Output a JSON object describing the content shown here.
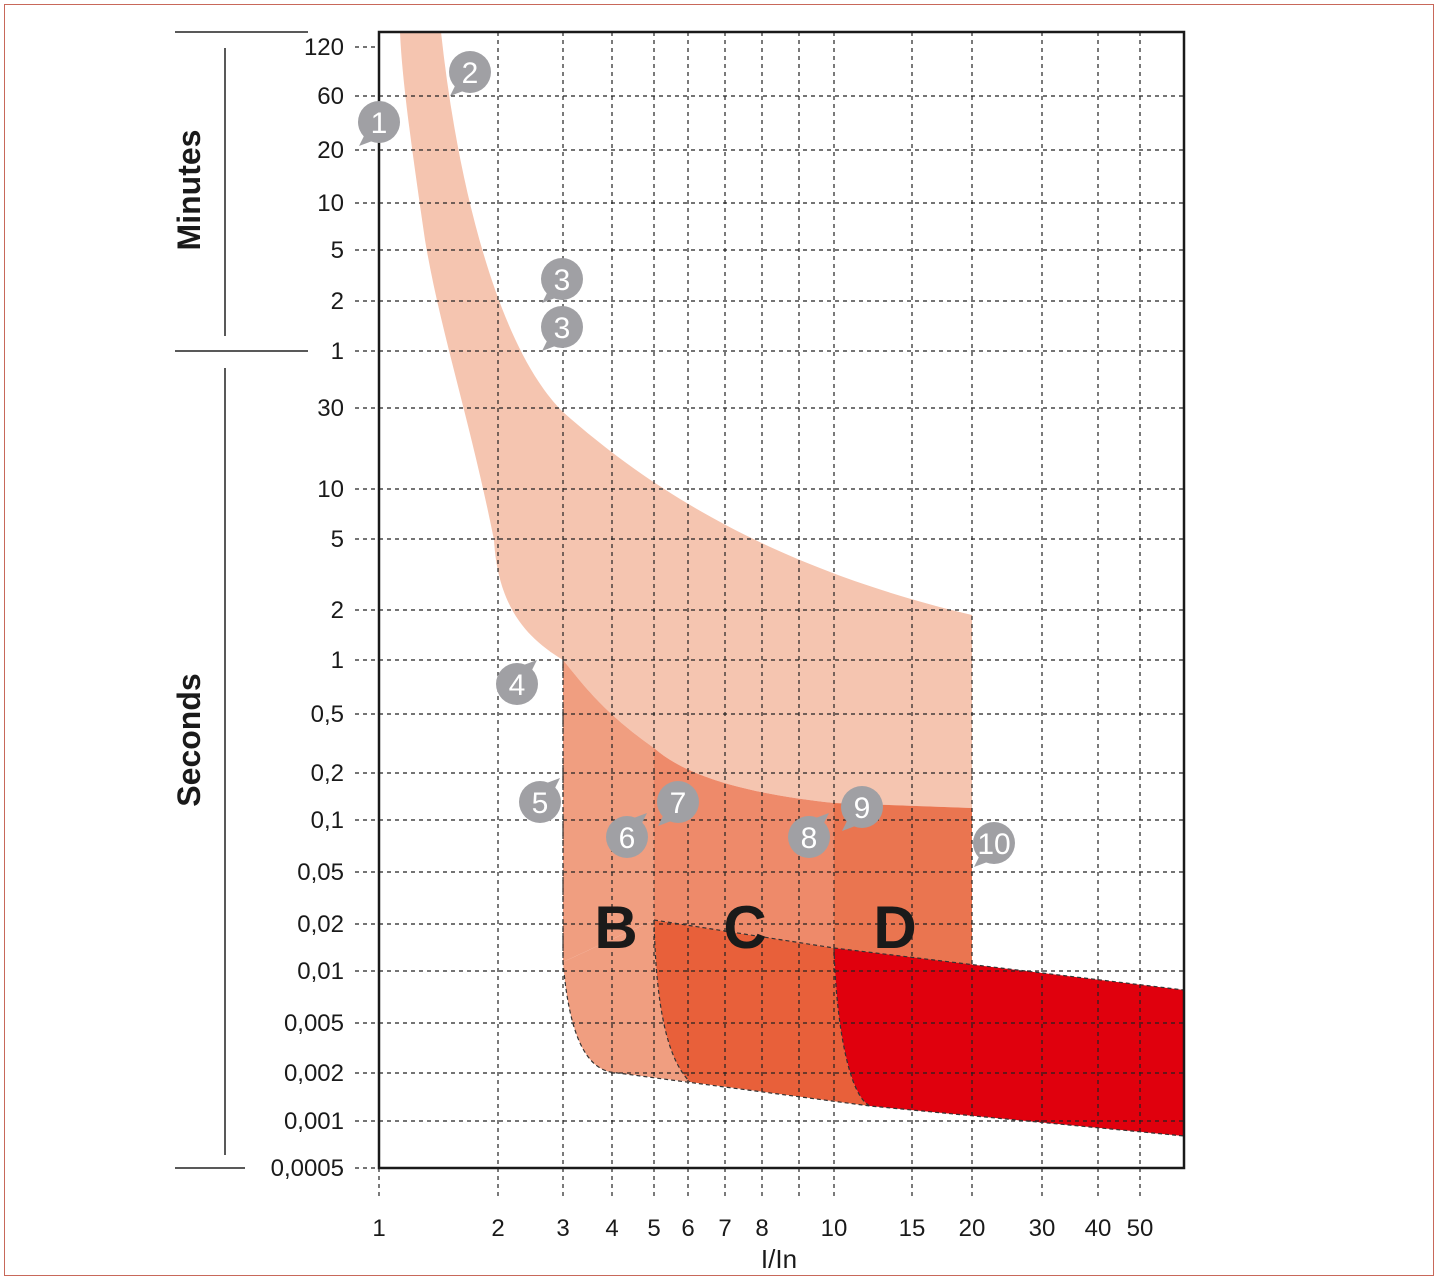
{
  "chart_data": {
    "type": "area",
    "title": "",
    "xlabel": "I/In",
    "x_scale": "log",
    "y_scale": "log",
    "x_ticks": [
      "1",
      "2",
      "3",
      "4",
      "5",
      "6",
      "7",
      "8",
      "10",
      "15",
      "20",
      "30",
      "40",
      "50"
    ],
    "y_ticks": [
      "120",
      "60",
      "20",
      "10",
      "5",
      "2",
      "1",
      "30",
      "10",
      "5",
      "2",
      "1",
      "0,5",
      "0,2",
      "0,1",
      "0,05",
      "0,02",
      "0,01",
      "0,005",
      "0,002",
      "0,001",
      "0,0005"
    ],
    "y_groups": [
      "Minutes",
      "Seconds"
    ],
    "zones": [
      {
        "name": "B",
        "color": "#f09e80"
      },
      {
        "name": "C",
        "color": "#e8603a"
      },
      {
        "name": "D",
        "color": "#e0000d"
      }
    ],
    "thermal_band_color": "#f5c5b0",
    "callouts": [
      "1",
      "2",
      "3",
      "3",
      "4",
      "5",
      "6",
      "7",
      "8",
      "9",
      "10"
    ],
    "callout_color": "#a0a0a4"
  }
}
